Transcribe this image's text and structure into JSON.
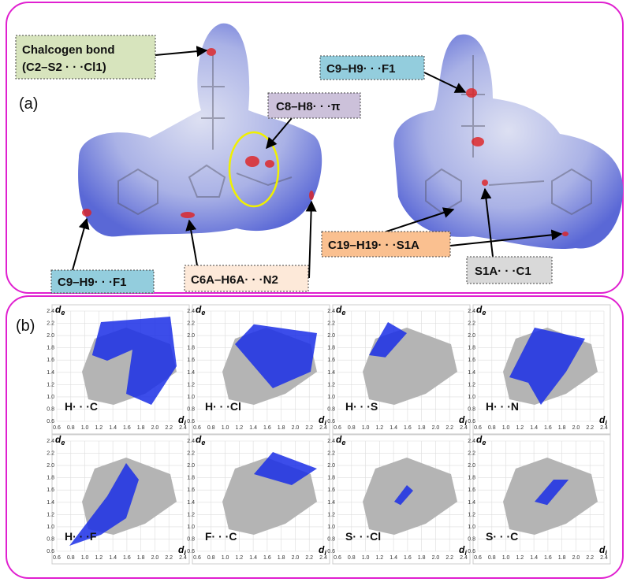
{
  "panel_a": {
    "label": "(a)",
    "annotations": [
      {
        "lines": [
          "Chalcogen bond",
          "(C2–S2 · · ·Cl1)"
        ]
      },
      {
        "text": "C8–H8· · ·π"
      },
      {
        "text": "C9–H9· · ·F1"
      },
      {
        "text": "C19–H19· · ·S1A"
      },
      {
        "text": "S1A· · ·C1"
      },
      {
        "text": "C9–H9· · ·F1"
      },
      {
        "text": "C6A–H6A· · ·N2"
      }
    ]
  },
  "panel_b": {
    "label": "(b)",
    "y_axis": {
      "symbol": "d",
      "subscript": "e"
    },
    "x_axis": {
      "symbol": "d",
      "subscript": "i"
    },
    "ticks": [
      "0.6",
      "0.8",
      "1.0",
      "1.2",
      "1.4",
      "1.6",
      "1.8",
      "2.0",
      "2.2",
      "2.4"
    ],
    "plots": [
      {
        "label": "H· · ·C"
      },
      {
        "label": "H· · ·Cl"
      },
      {
        "label": "H· · ·S"
      },
      {
        "label": "H· · ·N"
      },
      {
        "label": "H· · ·F"
      },
      {
        "label": "F· · ·C"
      },
      {
        "label": "S· · ·Cl"
      },
      {
        "label": "S· · ·C"
      }
    ]
  }
}
